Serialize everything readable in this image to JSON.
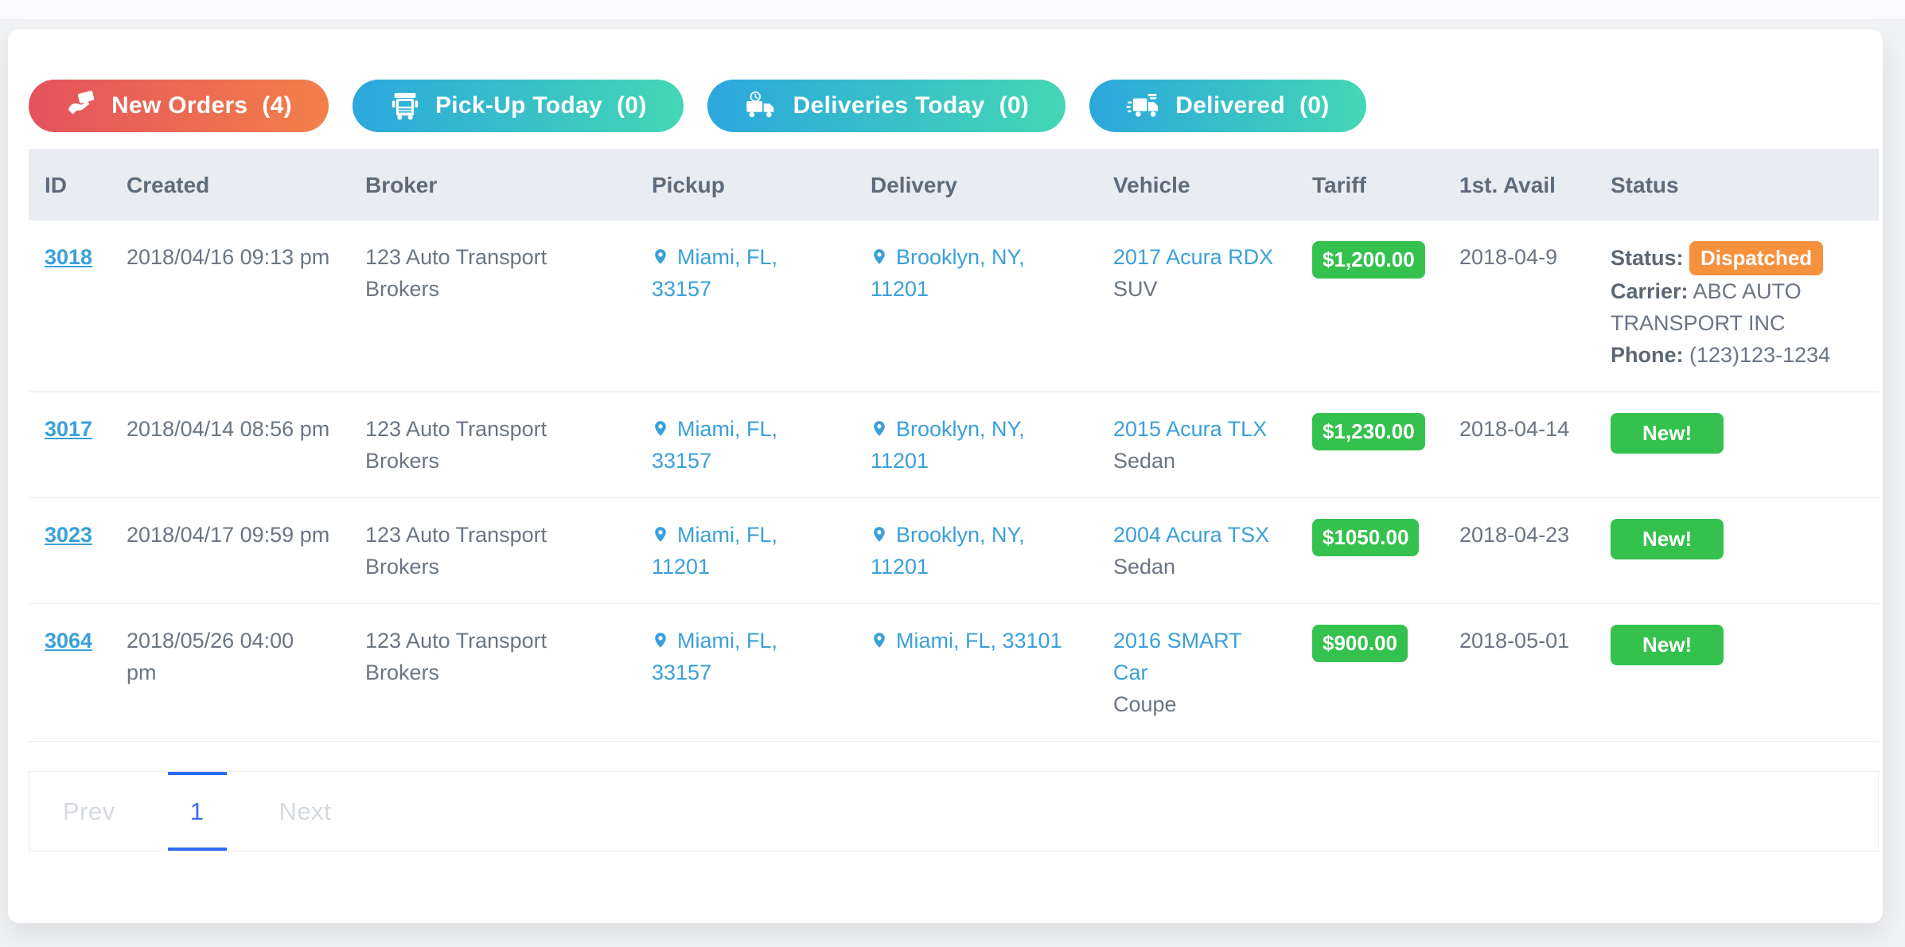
{
  "window": {
    "background": "#f1f2f4",
    "card_background": "#ffffff"
  },
  "filters": [
    {
      "label": "New Orders",
      "count": "(4)",
      "icon": "hand-card-icon",
      "gradient": [
        "#e4525e",
        "#f28049"
      ]
    },
    {
      "label": "Pick-Up Today",
      "count": "(0)",
      "icon": "truck-front-icon",
      "gradient": [
        "#2ba7dd",
        "#44d7b4"
      ]
    },
    {
      "label": "Deliveries Today",
      "count": "(0)",
      "icon": "truck-clock-icon",
      "gradient": [
        "#2ba7dd",
        "#44d7b4"
      ]
    },
    {
      "label": "Delivered",
      "count": "(0)",
      "icon": "truck-fast-icon",
      "gradient": [
        "#2ba7dd",
        "#44d7b4"
      ]
    }
  ],
  "table": {
    "headers": [
      "ID",
      "Created",
      "Broker",
      "Pickup",
      "Delivery",
      "Vehicle",
      "Tariff",
      "1st. Avail",
      "Status"
    ],
    "rows": [
      {
        "id": "3018",
        "created": "2018/04/16 09:13 pm",
        "broker": "123 Auto Transport Brokers",
        "pickup": "Miami, FL,\n33157",
        "delivery": "Brooklyn, NY,\n11201",
        "vehicle": "2017 Acura RDX",
        "vehicle_type": "SUV",
        "tariff": "$1,200.00",
        "avail": "2018-04-9",
        "status": {
          "type": "dispatched",
          "badge": "Dispatched",
          "carrier": "ABC AUTO TRANSPORT INC",
          "phone": "(123)123-1234"
        }
      },
      {
        "id": "3017",
        "created": "2018/04/14 08:56 pm",
        "broker": "123 Auto Transport Brokers",
        "pickup": "Miami, FL,\n33157",
        "delivery": "Brooklyn, NY,\n11201",
        "vehicle": "2015 Acura TLX",
        "vehicle_type": "Sedan",
        "tariff": "$1,230.00",
        "avail": "2018-04-14",
        "status": {
          "type": "new",
          "badge": "New!"
        }
      },
      {
        "id": "3023",
        "created": "2018/04/17 09:59 pm",
        "broker": "123 Auto Transport Brokers",
        "pickup": "Miami, FL, 11201",
        "delivery": "Brooklyn, NY,\n11201",
        "vehicle": "2004 Acura TSX",
        "vehicle_type": "Sedan",
        "tariff": "$1050.00",
        "avail": "2018-04-23",
        "status": {
          "type": "new",
          "badge": "New!"
        }
      },
      {
        "id": "3064",
        "created": "2018/05/26 04:00\npm",
        "broker": "123 Auto Transport Brokers",
        "pickup": "Miami, FL,\n33157",
        "delivery": "Miami, FL, 33101",
        "vehicle": "2016 SMART Car",
        "vehicle_type": "Coupe",
        "tariff": "$900.00",
        "avail": "2018-05-01",
        "status": {
          "type": "new",
          "badge": "New!"
        }
      }
    ]
  },
  "status_labels": {
    "status": "Status:",
    "carrier": "Carrier:",
    "phone": "Phone:"
  },
  "pagination": {
    "prev": "Prev",
    "page": "1",
    "next": "Next"
  },
  "colors": {
    "green_badge": "#35c14e",
    "orange_badge": "#f6923e",
    "link_blue": "#3aa0da",
    "pagination_active": "#3d6cf6",
    "pagination_border": "#2e6bf5",
    "header_bg": "#e9ecf0",
    "text_gray": "#6b7584",
    "header_text": "#5e6b7c"
  }
}
